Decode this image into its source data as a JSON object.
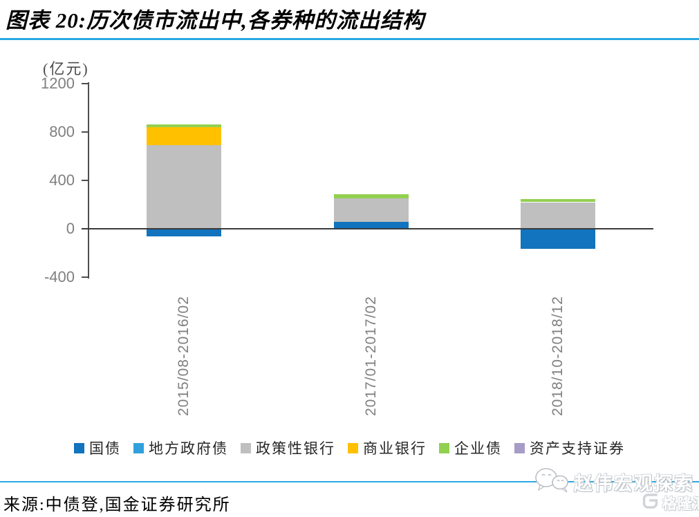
{
  "header": {
    "title": "图表 20:历次债市流出中,各券种的流出结构"
  },
  "chart_data": {
    "type": "bar",
    "stacked": true,
    "title": "历次债市流出中,各券种的流出结构",
    "unit_label": "(亿元)",
    "categories": [
      "2015/08-2016/02",
      "2017/01-2017/02",
      "2018/10-2018/12"
    ],
    "series": [
      {
        "name": "国债",
        "color": "#1273BE",
        "values": [
          -65,
          60,
          -165
        ]
      },
      {
        "name": "地方政府债",
        "color": "#2FA0DB",
        "values": [
          0,
          0,
          0
        ]
      },
      {
        "name": "政策性银行",
        "color": "#BFBFBF",
        "values": [
          690,
          190,
          220
        ]
      },
      {
        "name": "商业银行",
        "color": "#FFC000",
        "values": [
          150,
          0,
          0
        ]
      },
      {
        "name": "企业债",
        "color": "#92D050",
        "values": [
          25,
          35,
          28
        ]
      },
      {
        "name": "资产支持证券",
        "color": "#A79BC8",
        "values": [
          0,
          0,
          0
        ]
      }
    ],
    "ylim": [
      -400,
      1200
    ],
    "yticks": [
      1200,
      800,
      400,
      0,
      -400
    ],
    "grid": false,
    "legend_position": "bottom"
  },
  "colors": {
    "accent_rule": "#29A9E1",
    "axis": "#4D4D4D",
    "tick_text": "#7F7F7F"
  },
  "footer": {
    "source": "来源:中债登,国金证券研究所"
  },
  "watermark": {
    "text": "赵伟宏观探索",
    "brand": "格隆汇"
  }
}
